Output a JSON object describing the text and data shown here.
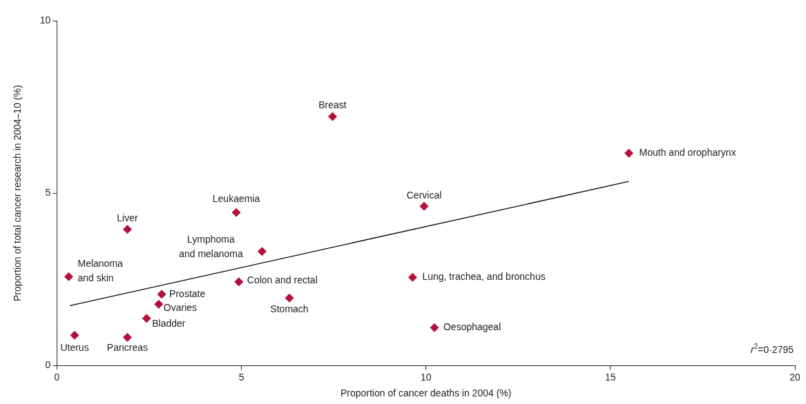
{
  "chart_data": {
    "type": "scatter",
    "xlabel": "Proportion of cancer deaths in 2004 (%)",
    "ylabel": "Proportion of total cancer research in 2004–10 (%)",
    "series": [
      {
        "marker": "diamond",
        "color": "#b5103c",
        "x": [
          7.47,
          15.5,
          9.95,
          4.86,
          1.91,
          5.56,
          0.32,
          4.93,
          9.64,
          6.3,
          2.84,
          2.76,
          2.43,
          0.48,
          1.91,
          10.23
        ],
        "values": [
          7.22,
          6.16,
          4.62,
          4.44,
          3.95,
          3.31,
          2.58,
          2.43,
          2.56,
          1.96,
          2.07,
          1.78,
          1.37,
          0.88,
          0.82,
          1.1
        ]
      },
      {
        "type": "line",
        "color": "#000000",
        "x": [
          0.35,
          15.5
        ],
        "values": [
          1.74,
          5.34
        ]
      }
    ],
    "xlim": [
      0,
      20
    ],
    "xticks": [
      0,
      5,
      10,
      15,
      20
    ],
    "ylim": [
      0,
      10
    ],
    "yticks": [
      0,
      5,
      10
    ],
    "grid": false,
    "legend": false,
    "annotations": [
      {
        "text": "Breast",
        "x": 7.47,
        "y": 7.22
      },
      {
        "text": "Mouth and oropharynx",
        "x": 15.5,
        "y": 6.16
      },
      {
        "text": "Cervical",
        "x": 9.95,
        "y": 4.62
      },
      {
        "text": "Leukaemia",
        "x": 4.86,
        "y": 4.44
      },
      {
        "text": "Liver",
        "x": 1.91,
        "y": 3.95
      },
      {
        "text": "Lymphoma\nand melanoma",
        "x": 5.56,
        "y": 3.31
      },
      {
        "text": "Melanoma\nand skin",
        "x": 0.32,
        "y": 2.58
      },
      {
        "text": "Colon and rectal",
        "x": 4.93,
        "y": 2.43
      },
      {
        "text": "Lung, trachea, and bronchus",
        "x": 9.64,
        "y": 2.56
      },
      {
        "text": "Stomach",
        "x": 6.3,
        "y": 1.96
      },
      {
        "text": "Prostate",
        "x": 2.84,
        "y": 2.07
      },
      {
        "text": "Ovaries",
        "x": 2.76,
        "y": 1.78
      },
      {
        "text": "Bladder",
        "x": 2.43,
        "y": 1.37
      },
      {
        "text": "Uterus",
        "x": 0.48,
        "y": 0.88
      },
      {
        "text": "Pancreas",
        "x": 1.91,
        "y": 0.82
      },
      {
        "text": "Oesophageal",
        "x": 10.23,
        "y": 1.1
      },
      "r$^{2}$=0·2795"
    ]
  }
}
